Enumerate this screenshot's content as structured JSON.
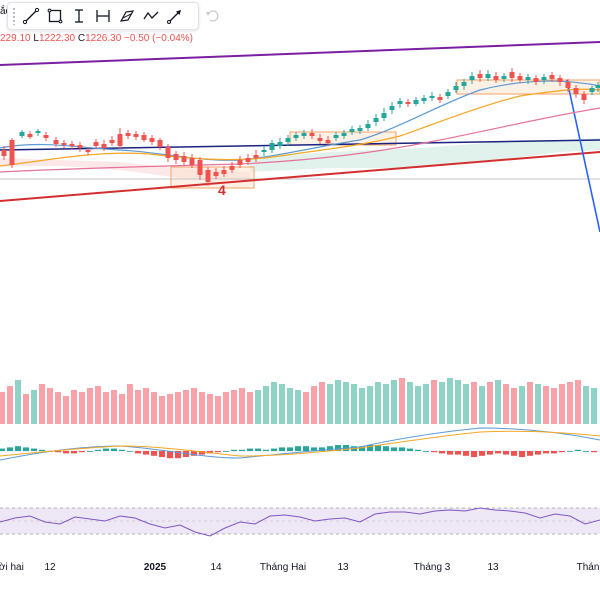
{
  "title_stub": "ắc",
  "ohlc": {
    "high": "229.10",
    "low_label": "L",
    "low": "1222.30",
    "close_label": "C",
    "close": "1226.30",
    "change": "−0.50 (−0.04%)"
  },
  "toolbar": {
    "tools": [
      "trend-line-icon",
      "rectangle-icon",
      "text-cursor-icon",
      "fib-retracement-icon",
      "brush-icon",
      "path-icon",
      "arrow-icon"
    ],
    "undo": "undo-icon"
  },
  "annotation": {
    "label": "4"
  },
  "xaxis": [
    {
      "label": "ười hai",
      "bold": false
    },
    {
      "label": "12",
      "bold": false
    },
    {
      "label": "2025",
      "bold": true
    },
    {
      "label": "14",
      "bold": false
    },
    {
      "label": "Tháng Hai",
      "bold": false
    },
    {
      "label": "13",
      "bold": false
    },
    {
      "label": "Tháng 3",
      "bold": false
    },
    {
      "label": "13",
      "bold": false
    },
    {
      "label": "Thán",
      "bold": false
    }
  ],
  "colors": {
    "up": "#26a69a",
    "down": "#ef5350",
    "up_volume": "#8fd3c7",
    "down_volume": "#f7a1a8",
    "purple_line": "#7b1fa2",
    "navy_line": "#1a237e",
    "red_line": "#d32f2f",
    "blue_line": "#2962ff",
    "ma_blue": "#5b9bd5",
    "ma_orange": "#f5a623",
    "ma_pink": "#e57399",
    "rsi_line": "#7e57c2",
    "rsi_band": "#ede7f6"
  }
}
